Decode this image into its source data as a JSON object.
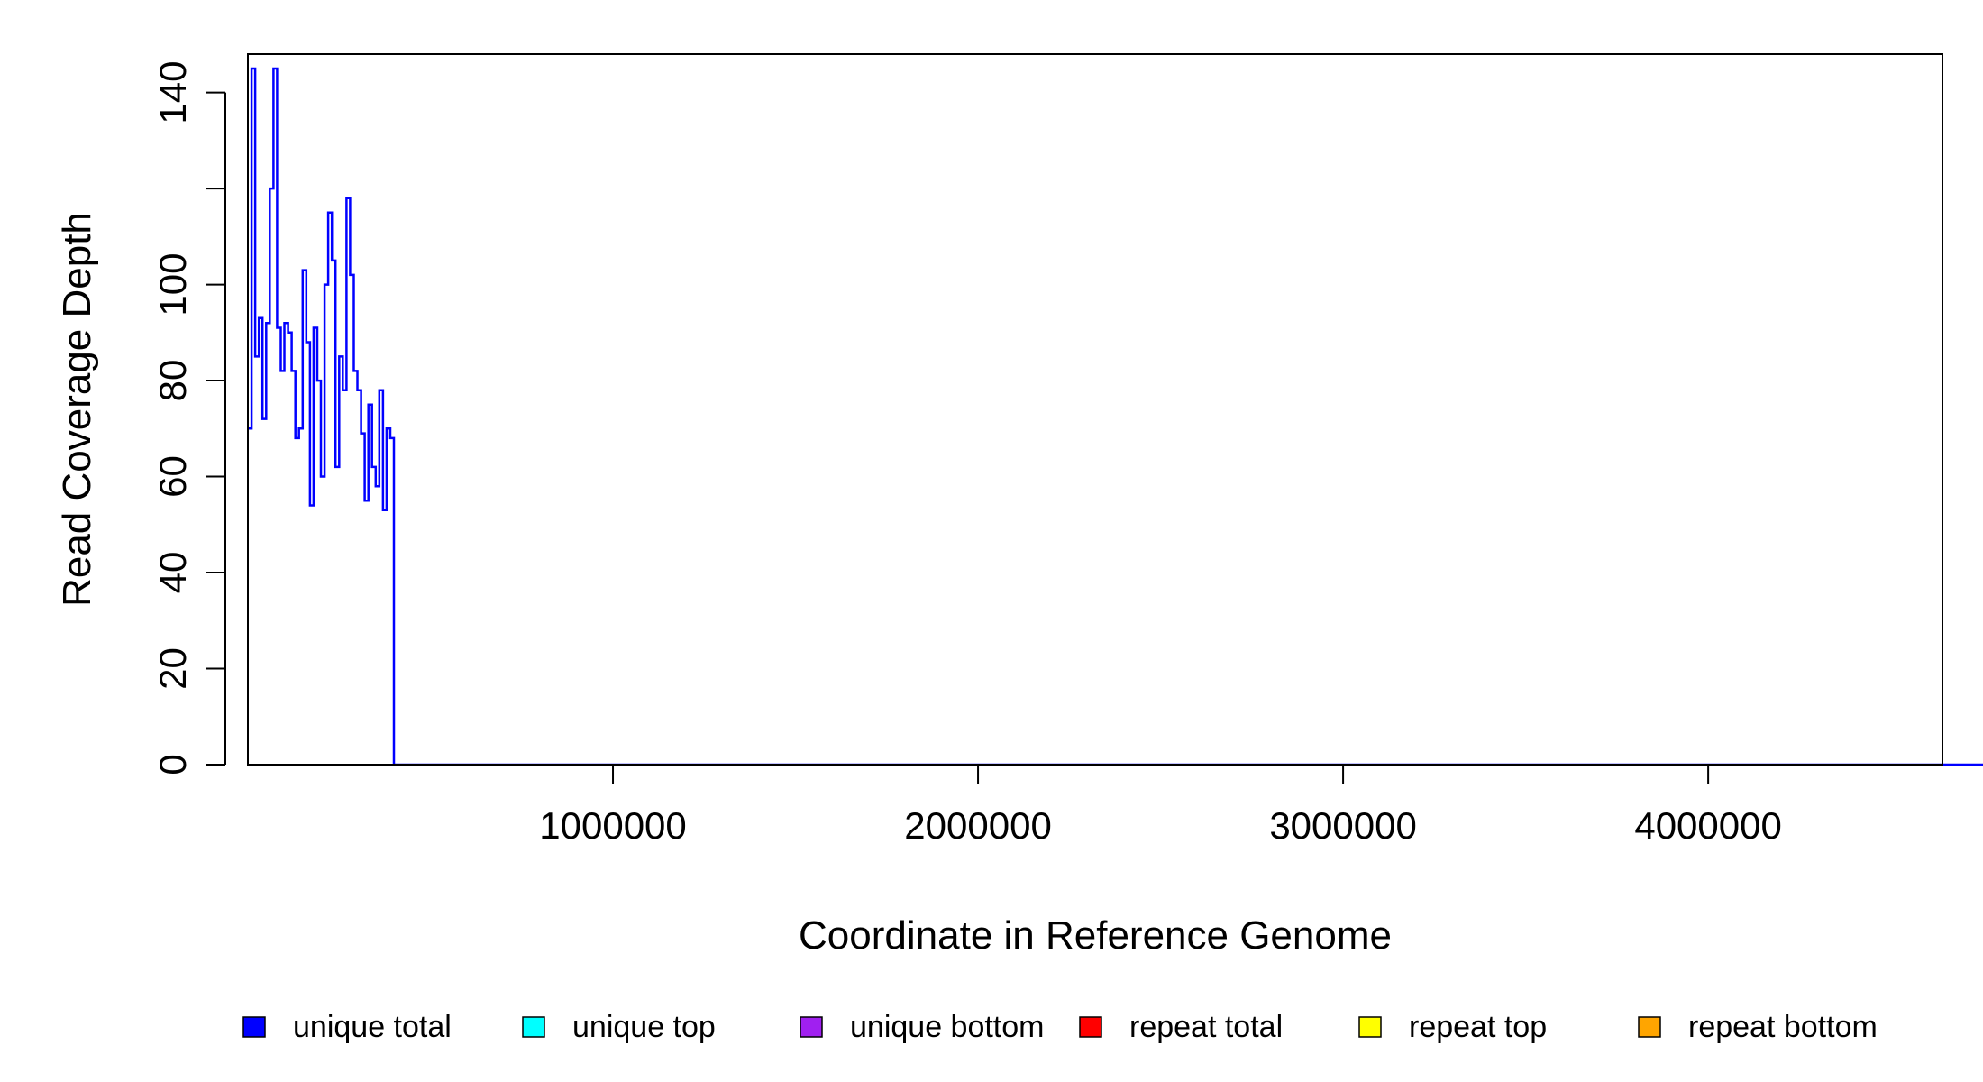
{
  "chart_data": {
    "type": "line",
    "title": "",
    "xlabel": "Coordinate in Reference Genome",
    "ylabel": "Read Coverage Depth",
    "xlim": [
      1,
      4641652
    ],
    "ylim": [
      0,
      148
    ],
    "x_ticks": [
      {
        "value": 1000000,
        "label": "1000000"
      },
      {
        "value": 2000000,
        "label": "2000000"
      },
      {
        "value": 3000000,
        "label": "3000000"
      },
      {
        "value": 4000000,
        "label": "4000000"
      }
    ],
    "y_ticks": [
      {
        "value": 0,
        "label": "0"
      },
      {
        "value": 20,
        "label": "20"
      },
      {
        "value": 40,
        "label": "40"
      },
      {
        "value": 60,
        "label": "60"
      },
      {
        "value": 80,
        "label": "80"
      },
      {
        "value": 100,
        "label": "100"
      },
      {
        "value": 120,
        "label": ""
      },
      {
        "value": 140,
        "label": "140"
      }
    ],
    "grid": false,
    "legend_position": "bottom",
    "step_width": 10000,
    "series": [
      {
        "name": "unique total",
        "color": "#0000FF",
        "values": [
          70,
          145,
          85,
          93,
          72,
          92,
          120,
          145,
          91,
          82,
          92,
          90,
          82,
          68,
          70,
          103,
          88,
          54,
          91,
          80,
          60,
          100,
          115,
          105,
          62,
          85,
          78,
          118,
          102,
          82,
          78,
          69,
          55,
          75,
          62,
          58,
          78,
          53,
          70,
          68,
          0,
          0,
          0,
          0,
          0,
          0,
          0,
          0,
          0,
          0,
          0,
          0,
          0,
          0,
          0,
          0,
          0,
          0,
          0,
          0,
          0,
          0,
          0,
          0,
          0,
          0,
          0,
          0,
          0,
          0,
          0,
          0,
          0,
          0,
          0,
          0,
          0,
          0,
          0,
          0,
          0,
          0,
          0,
          0,
          0,
          0,
          0,
          0,
          0,
          0,
          0,
          0,
          0,
          0,
          0,
          0,
          0,
          0,
          0,
          0,
          0,
          0,
          0,
          0,
          0,
          0,
          0,
          0,
          0,
          0,
          0,
          0,
          0,
          0,
          0,
          0,
          0,
          0,
          0,
          0,
          0,
          0,
          0,
          0,
          0,
          0,
          0,
          0,
          0,
          0,
          0,
          0,
          0,
          0,
          0,
          0,
          0,
          0,
          0,
          0,
          0,
          0,
          0,
          0,
          0,
          0,
          0,
          0,
          0,
          0,
          0,
          0,
          0,
          0,
          0,
          0,
          0,
          0,
          0,
          0,
          0,
          0,
          0,
          0,
          0,
          0,
          0,
          0,
          0,
          0,
          0,
          0,
          0,
          0,
          0,
          0,
          0,
          0,
          0,
          0,
          0,
          0,
          0,
          0,
          0,
          0,
          0,
          0,
          0,
          0,
          0,
          0,
          0,
          0,
          0,
          0,
          0,
          0,
          0,
          0,
          0,
          0,
          0,
          0,
          0,
          0,
          0,
          0,
          0,
          0,
          0,
          0,
          0,
          0,
          0,
          0,
          0,
          0,
          0,
          0,
          0,
          0,
          0,
          0,
          0,
          0,
          0,
          0,
          0,
          0,
          0,
          0,
          0,
          0,
          0,
          0,
          0,
          0,
          0,
          0,
          0,
          0,
          0,
          0,
          0,
          0,
          0,
          0,
          0,
          0,
          0,
          0,
          0,
          0,
          0,
          0,
          0,
          0,
          0,
          0,
          0,
          0,
          0,
          0,
          0,
          0,
          0,
          0,
          0,
          0,
          0,
          0,
          0,
          0,
          0,
          0,
          0,
          0,
          0,
          0,
          0,
          0,
          0,
          0,
          0,
          0,
          0,
          0,
          0,
          0,
          0,
          0,
          0,
          0,
          0,
          0,
          0,
          0,
          0,
          0,
          0,
          0,
          0,
          0,
          0,
          0,
          0,
          0,
          0,
          0,
          0,
          0,
          0,
          0,
          0,
          0,
          0,
          0,
          0,
          0,
          0,
          0,
          0,
          0,
          0,
          0,
          0,
          0,
          0,
          0,
          0,
          0,
          0,
          0,
          0,
          0,
          0,
          0,
          0,
          0,
          0,
          0,
          0,
          0,
          0,
          0,
          0,
          0,
          0,
          0,
          0,
          0,
          0,
          0,
          0,
          0,
          0,
          0,
          0,
          0,
          0,
          0,
          0,
          0,
          0,
          0,
          0,
          0,
          0,
          0,
          0,
          0,
          0,
          0,
          0,
          0,
          0,
          0,
          0,
          0,
          0,
          0,
          0,
          0,
          0,
          0,
          0,
          0,
          0,
          0,
          0,
          0,
          0,
          0,
          0,
          0,
          0,
          0,
          0,
          0,
          0,
          0,
          0,
          0,
          0,
          0,
          0,
          0,
          0,
          0,
          0,
          0,
          0,
          0,
          0,
          0,
          0,
          0,
          0,
          0,
          0,
          0,
          0,
          0,
          0,
          0,
          0,
          0,
          0,
          0,
          0,
          0,
          0,
          0,
          0,
          0,
          0,
          0,
          0,
          0,
          0,
          0,
          0,
          0,
          0,
          0,
          0,
          0,
          0,
          0,
          0,
          0,
          0,
          0,
          0,
          0,
          0,
          0,
          0,
          0,
          0,
          0,
          0,
          0,
          0,
          0,
          0,
          0,
          0,
          0,
          0,
          0,
          0,
          0,
          0,
          0,
          0,
          0
        ]
      },
      {
        "name": "unique top",
        "color": "#00FFFF",
        "values": []
      },
      {
        "name": "unique bottom",
        "color": "#A020F0",
        "values": []
      },
      {
        "name": "repeat total",
        "color": "#FF0000",
        "values": []
      },
      {
        "name": "repeat top",
        "color": "#FFFF00",
        "values": []
      },
      {
        "name": "repeat bottom",
        "color": "#FFA500",
        "values": []
      }
    ]
  }
}
